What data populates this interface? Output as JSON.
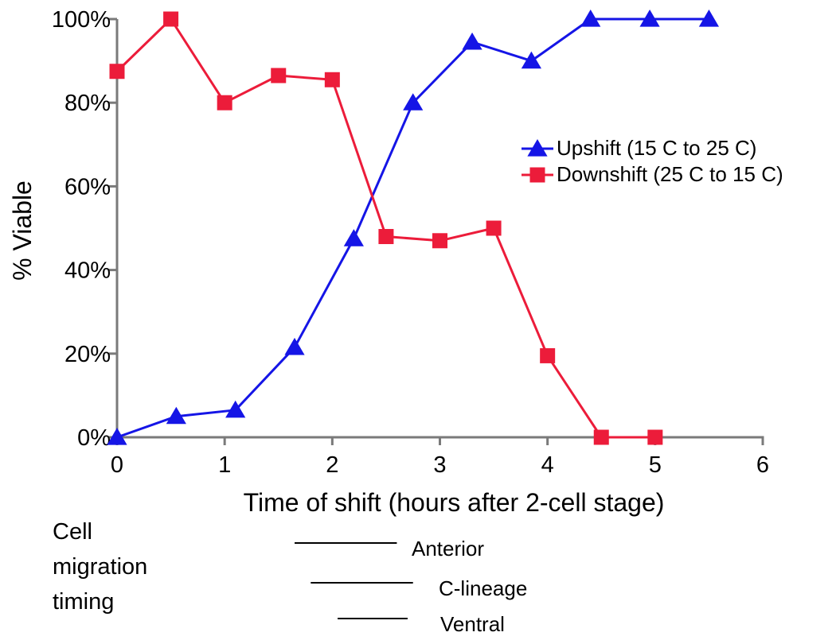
{
  "chart_data": {
    "type": "line",
    "xlabel": "Time of shift (hours after 2-cell stage)",
    "ylabel": "% Viable",
    "xlim": [
      0,
      6
    ],
    "ylim": [
      0,
      100
    ],
    "x_ticks": [
      0,
      1,
      2,
      3,
      4,
      5,
      6
    ],
    "y_ticks": [
      0,
      20,
      40,
      60,
      80,
      100
    ],
    "x_tick_labels": [
      "0",
      "1",
      "2",
      "3",
      "4",
      "5",
      "6"
    ],
    "y_tick_labels": [
      "0%",
      "20%",
      "40%",
      "60%",
      "80%",
      "100%"
    ],
    "grid": false,
    "legend": "right",
    "series": [
      {
        "name": "Upshift (15 C to 25 C)",
        "color": "#1515e6",
        "marker": "triangle",
        "points": [
          [
            0.0,
            0
          ],
          [
            0.55,
            5
          ],
          [
            1.1,
            6.5
          ],
          [
            1.65,
            21.5
          ],
          [
            2.2,
            47.5
          ],
          [
            2.75,
            80
          ],
          [
            3.3,
            94.5
          ],
          [
            3.85,
            90
          ],
          [
            4.4,
            100
          ],
          [
            4.95,
            100
          ],
          [
            5.5,
            100
          ]
        ]
      },
      {
        "name": "Downshift (25 C to 15 C)",
        "color": "#ec1c3a",
        "marker": "square",
        "points": [
          [
            0.0,
            87.5
          ],
          [
            0.5,
            100
          ],
          [
            1.0,
            80
          ],
          [
            1.5,
            86.5
          ],
          [
            2.0,
            85.5
          ],
          [
            2.5,
            48
          ],
          [
            3.0,
            47
          ],
          [
            3.5,
            50
          ],
          [
            4.0,
            19.5
          ],
          [
            4.5,
            0
          ],
          [
            5.0,
            0
          ]
        ]
      }
    ]
  },
  "cell_migration": {
    "label_lines": [
      "Cell",
      "migration",
      "timing"
    ],
    "bars": [
      {
        "label": "Anterior",
        "start": 1.65,
        "end": 2.6
      },
      {
        "label": "C-lineage",
        "start": 1.8,
        "end": 2.75
      },
      {
        "label": "Ventral",
        "start": 2.05,
        "end": 2.7
      }
    ]
  }
}
